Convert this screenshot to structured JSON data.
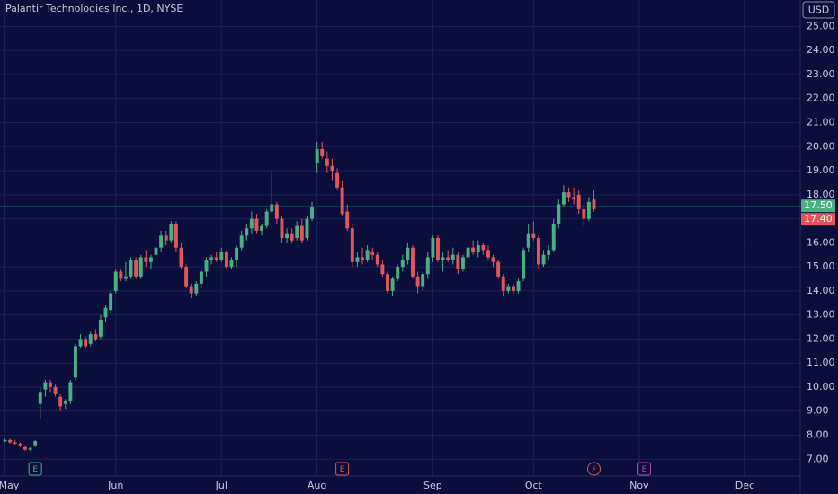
{
  "chart_data": {
    "type": "candlestick",
    "title": "Palantir Technologies Inc., 1D, NYSE",
    "currency": "USD",
    "up_color": "#4caf84",
    "down_color": "#e0575b",
    "grid": true,
    "ylim": [
      6.3,
      26.1
    ],
    "yticks": [
      {
        "value": 7,
        "label": "7.00"
      },
      {
        "value": 8,
        "label": "8.00"
      },
      {
        "value": 9,
        "label": "9.00"
      },
      {
        "value": 10,
        "label": "10.00"
      },
      {
        "value": 11,
        "label": "11.00"
      },
      {
        "value": 12,
        "label": "12.00"
      },
      {
        "value": 13,
        "label": "13.00"
      },
      {
        "value": 14,
        "label": "14.00"
      },
      {
        "value": 15,
        "label": "15.00"
      },
      {
        "value": 16,
        "label": "16.00"
      },
      {
        "value": 17,
        "label": "17.00"
      },
      {
        "value": 18,
        "label": "18.00"
      },
      {
        "value": 19,
        "label": "19.00"
      },
      {
        "value": 20,
        "label": "20.00"
      },
      {
        "value": 21,
        "label": "21.00"
      },
      {
        "value": 22,
        "label": "22.00"
      },
      {
        "value": 23,
        "label": "23.00"
      },
      {
        "value": 24,
        "label": "24.00"
      },
      {
        "value": 25,
        "label": "25.00"
      }
    ],
    "xlim": [
      -1,
      158
    ],
    "xticks": [
      {
        "value": 0,
        "label": "May"
      },
      {
        "value": 22,
        "label": "Jun"
      },
      {
        "value": 43,
        "label": "Jul"
      },
      {
        "value": 62,
        "label": "Aug"
      },
      {
        "value": 85,
        "label": "Sep"
      },
      {
        "value": 105,
        "label": "Oct"
      },
      {
        "value": 126,
        "label": "Nov"
      },
      {
        "value": 147,
        "label": "Dec"
      }
    ],
    "price_line": {
      "value": 17.5,
      "label": "17.50",
      "color": "#4caf84"
    },
    "close_marker": {
      "value": 17.4,
      "label": "17.40",
      "color": "#e0575b"
    },
    "events": [
      {
        "x": 6,
        "label": "E",
        "color": "#4caf84"
      },
      {
        "x": 67,
        "label": "E",
        "color": "#e0575b"
      },
      {
        "x": 117,
        "label": "⚡",
        "color": "#e0575b"
      },
      {
        "x": 127,
        "label": "E",
        "color": "#b04fc2"
      }
    ],
    "ohlc": [
      [
        7.75,
        7.85,
        7.7,
        7.8
      ],
      [
        7.8,
        7.85,
        7.65,
        7.7
      ],
      [
        7.7,
        7.8,
        7.6,
        7.65
      ],
      [
        7.65,
        7.7,
        7.5,
        7.55
      ],
      [
        7.5,
        7.55,
        7.35,
        7.4
      ],
      [
        7.4,
        7.5,
        7.35,
        7.45
      ],
      [
        7.55,
        7.8,
        7.5,
        7.75
      ],
      [
        9.3,
        10.0,
        8.7,
        9.8
      ],
      [
        9.9,
        10.3,
        9.6,
        10.2
      ],
      [
        10.2,
        10.3,
        9.8,
        10.0
      ],
      [
        10.0,
        10.1,
        9.6,
        9.7
      ],
      [
        9.6,
        9.7,
        9.0,
        9.2
      ],
      [
        9.3,
        9.5,
        9.1,
        9.4
      ],
      [
        9.4,
        10.3,
        9.3,
        10.2
      ],
      [
        10.4,
        11.8,
        10.3,
        11.7
      ],
      [
        11.7,
        12.2,
        11.6,
        12.0
      ],
      [
        12.0,
        12.1,
        11.6,
        11.7
      ],
      [
        11.8,
        12.3,
        11.7,
        12.2
      ],
      [
        12.2,
        12.4,
        11.9,
        12.0
      ],
      [
        12.1,
        13.0,
        12.0,
        12.8
      ],
      [
        12.9,
        13.4,
        12.7,
        13.3
      ],
      [
        13.2,
        14.0,
        13.1,
        13.9
      ],
      [
        14.0,
        14.9,
        13.9,
        14.8
      ],
      [
        14.8,
        14.9,
        14.4,
        14.5
      ],
      [
        14.5,
        15.2,
        14.4,
        14.6
      ],
      [
        14.6,
        15.4,
        14.5,
        15.3
      ],
      [
        15.3,
        15.4,
        14.5,
        14.6
      ],
      [
        14.6,
        15.5,
        14.5,
        15.4
      ],
      [
        15.4,
        15.7,
        15.0,
        15.2
      ],
      [
        15.2,
        15.5,
        14.9,
        15.4
      ],
      [
        15.5,
        17.2,
        15.3,
        15.8
      ],
      [
        15.8,
        16.5,
        15.6,
        16.3
      ],
      [
        16.3,
        16.5,
        15.9,
        16.1
      ],
      [
        16.1,
        16.9,
        16.0,
        16.8
      ],
      [
        16.8,
        16.9,
        15.6,
        15.8
      ],
      [
        15.8,
        16.0,
        14.9,
        15.0
      ],
      [
        15.0,
        15.1,
        14.1,
        14.2
      ],
      [
        14.2,
        14.3,
        13.7,
        13.9
      ],
      [
        13.9,
        14.4,
        13.8,
        14.3
      ],
      [
        14.3,
        14.9,
        14.1,
        14.8
      ],
      [
        14.8,
        15.4,
        14.6,
        15.3
      ],
      [
        15.3,
        15.5,
        15.1,
        15.4
      ],
      [
        15.4,
        15.6,
        15.2,
        15.3
      ],
      [
        15.3,
        15.8,
        15.2,
        15.6
      ],
      [
        15.6,
        15.7,
        14.9,
        15.0
      ],
      [
        15.0,
        15.4,
        14.9,
        15.3
      ],
      [
        15.3,
        15.9,
        15.0,
        15.8
      ],
      [
        15.8,
        16.5,
        15.7,
        16.3
      ],
      [
        16.3,
        16.8,
        16.1,
        16.6
      ],
      [
        16.6,
        17.3,
        16.4,
        17.0
      ],
      [
        17.0,
        17.2,
        16.4,
        16.5
      ],
      [
        16.5,
        16.8,
        16.3,
        16.7
      ],
      [
        16.7,
        17.4,
        16.6,
        17.3
      ],
      [
        17.3,
        19.0,
        17.2,
        17.6
      ],
      [
        17.6,
        17.7,
        16.8,
        17.0
      ],
      [
        17.0,
        17.1,
        16.0,
        16.2
      ],
      [
        16.2,
        16.6,
        16.0,
        16.4
      ],
      [
        16.4,
        16.6,
        16.0,
        16.1
      ],
      [
        16.2,
        16.9,
        16.1,
        16.7
      ],
      [
        16.7,
        17.0,
        16.0,
        16.1
      ],
      [
        16.2,
        17.1,
        16.1,
        17.0
      ],
      [
        17.0,
        17.7,
        16.9,
        17.5
      ],
      [
        19.3,
        20.2,
        18.9,
        19.9
      ],
      [
        19.9,
        20.2,
        19.5,
        19.6
      ],
      [
        19.5,
        19.8,
        18.9,
        19.2
      ],
      [
        19.2,
        19.5,
        18.6,
        19.0
      ],
      [
        18.9,
        19.1,
        18.2,
        18.3
      ],
      [
        18.3,
        18.6,
        17.1,
        17.2
      ],
      [
        17.3,
        17.6,
        16.5,
        16.6
      ],
      [
        16.6,
        16.8,
        15.0,
        15.2
      ],
      [
        15.2,
        15.6,
        15.0,
        15.4
      ],
      [
        15.4,
        15.8,
        15.1,
        15.3
      ],
      [
        15.3,
        15.9,
        15.2,
        15.7
      ],
      [
        15.6,
        15.8,
        15.3,
        15.5
      ],
      [
        15.5,
        15.6,
        15.0,
        15.1
      ],
      [
        15.1,
        15.3,
        14.6,
        14.7
      ],
      [
        14.7,
        14.8,
        13.9,
        14.0
      ],
      [
        14.0,
        14.6,
        13.8,
        14.5
      ],
      [
        14.5,
        15.1,
        14.4,
        15.0
      ],
      [
        15.0,
        15.5,
        14.8,
        15.3
      ],
      [
        15.3,
        16.0,
        15.1,
        15.8
      ],
      [
        15.8,
        15.9,
        14.5,
        14.6
      ],
      [
        14.6,
        14.8,
        13.9,
        14.2
      ],
      [
        14.2,
        14.8,
        14.0,
        14.7
      ],
      [
        14.7,
        15.6,
        14.5,
        15.4
      ],
      [
        15.4,
        16.3,
        15.2,
        16.2
      ],
      [
        16.2,
        16.3,
        15.2,
        15.3
      ],
      [
        15.3,
        15.6,
        14.8,
        15.4
      ],
      [
        15.4,
        15.7,
        15.2,
        15.3
      ],
      [
        15.3,
        15.8,
        15.1,
        15.5
      ],
      [
        15.5,
        15.6,
        14.7,
        14.9
      ],
      [
        14.9,
        15.5,
        14.8,
        15.4
      ],
      [
        15.4,
        15.9,
        15.3,
        15.8
      ],
      [
        15.8,
        16.1,
        15.5,
        15.6
      ],
      [
        15.6,
        16.1,
        15.4,
        15.9
      ],
      [
        15.9,
        16.0,
        15.5,
        15.7
      ],
      [
        15.7,
        15.9,
        15.3,
        15.4
      ],
      [
        15.4,
        15.5,
        15.0,
        15.2
      ],
      [
        15.2,
        15.3,
        14.5,
        14.6
      ],
      [
        14.6,
        14.7,
        13.8,
        14.0
      ],
      [
        14.0,
        14.3,
        13.9,
        14.2
      ],
      [
        14.2,
        14.3,
        13.9,
        14.0
      ],
      [
        14.0,
        14.5,
        13.9,
        14.4
      ],
      [
        14.5,
        15.8,
        14.4,
        15.7
      ],
      [
        15.8,
        16.8,
        15.6,
        16.4
      ],
      [
        16.4,
        16.9,
        16.1,
        16.2
      ],
      [
        16.2,
        16.3,
        14.9,
        15.1
      ],
      [
        15.1,
        15.7,
        15.0,
        15.5
      ],
      [
        15.5,
        15.9,
        15.3,
        15.7
      ],
      [
        15.7,
        17.0,
        15.6,
        16.8
      ],
      [
        16.8,
        17.8,
        16.6,
        17.6
      ],
      [
        17.6,
        18.4,
        17.5,
        18.1
      ],
      [
        18.1,
        18.3,
        17.7,
        17.9
      ],
      [
        17.9,
        18.3,
        17.6,
        17.8
      ],
      [
        18.0,
        18.2,
        17.2,
        17.4
      ],
      [
        17.4,
        17.6,
        16.7,
        17.0
      ],
      [
        17.0,
        17.9,
        16.9,
        17.7
      ],
      [
        17.8,
        18.2,
        17.3,
        17.4
      ]
    ]
  }
}
